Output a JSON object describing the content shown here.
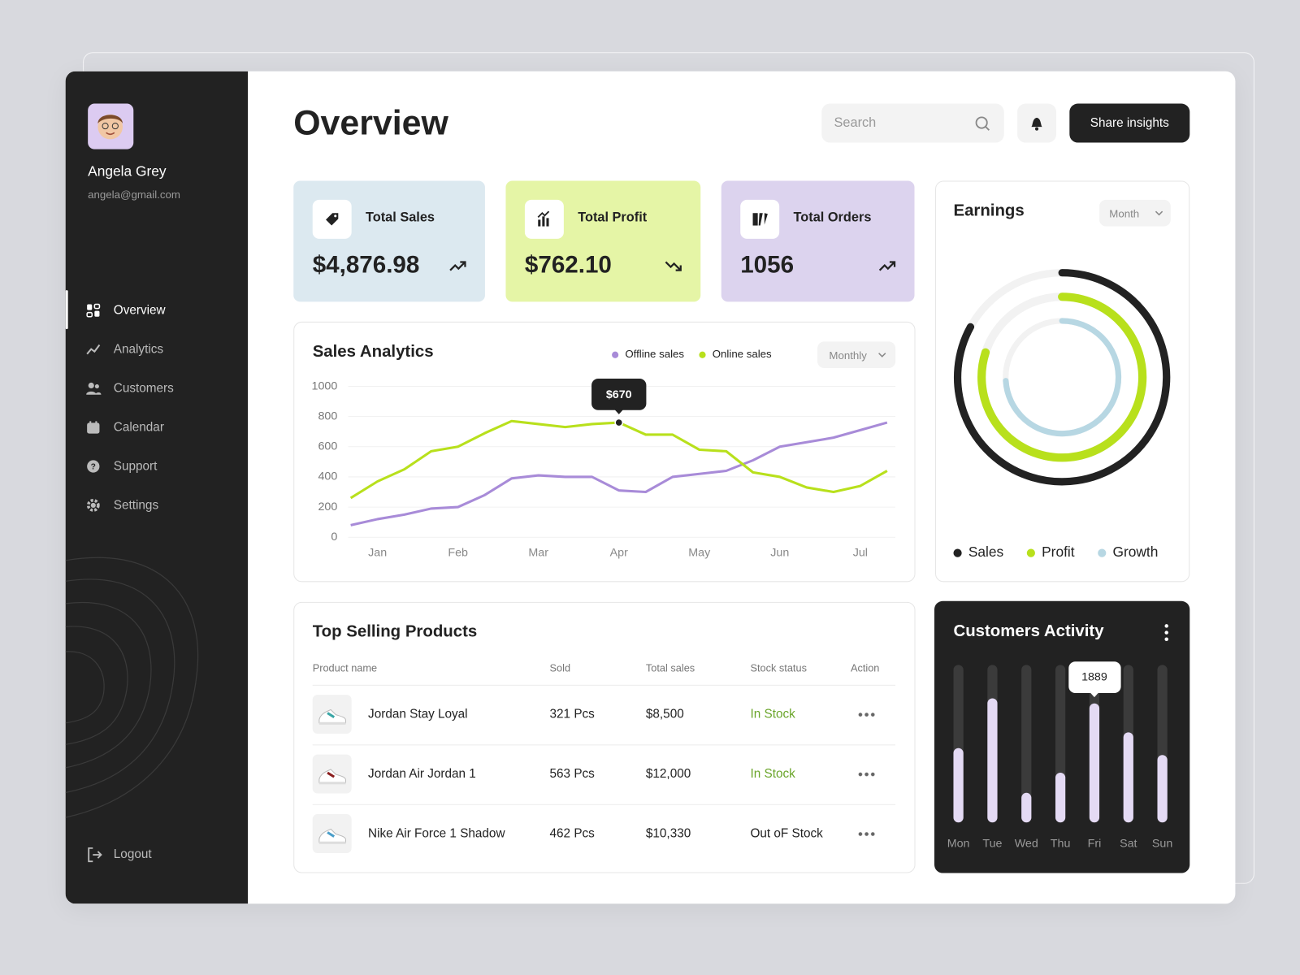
{
  "sidebar": {
    "user_name": "Angela Grey",
    "user_email": "angela@gmail.com",
    "nav": [
      "Overview",
      "Analytics",
      "Customers",
      "Calendar",
      "Support",
      "Settings"
    ],
    "logout": "Logout"
  },
  "header": {
    "title": "Overview",
    "search_placeholder": "Search",
    "share_button": "Share insights"
  },
  "stat_cards": [
    {
      "label": "Total Sales",
      "value": "$4,876.98",
      "trend": "up",
      "color": "#dce9f0"
    },
    {
      "label": "Total Profit",
      "value": "$762.10",
      "trend": "down",
      "color": "#e5f5a6"
    },
    {
      "label": "Total Orders",
      "value": "1056",
      "trend": "up",
      "color": "#dcd3ee"
    }
  ],
  "products": {
    "title": "Top Selling Products",
    "columns": [
      "Product name",
      "Sold",
      "Total sales",
      "Stock status",
      "Action"
    ],
    "rows": [
      {
        "name": "Jordan Stay Loyal",
        "sold": "321 Pcs",
        "total": "$8,500",
        "status": "In Stock",
        "in_stock": true
      },
      {
        "name": "Jordan Air Jordan 1",
        "sold": "563 Pcs",
        "total": "$12,000",
        "status": "In Stock",
        "in_stock": true
      },
      {
        "name": "Nike Air Force 1 Shadow",
        "sold": "462 Pcs",
        "total": "$10,330",
        "status": "Out oF Stock",
        "in_stock": false
      }
    ]
  },
  "chart_data": [
    {
      "type": "line",
      "title": "Sales Analytics",
      "period": "Monthly",
      "categories": [
        null,
        "Jan",
        null,
        null,
        "Feb",
        null,
        null,
        "Mar",
        null,
        null,
        "Apr",
        null,
        null,
        "May",
        null,
        null,
        "Jun",
        null,
        null,
        "Jul",
        null
      ],
      "series": [
        {
          "name": "Offline sales",
          "color": "#a88bd8",
          "values": [
            80,
            120,
            150,
            190,
            200,
            280,
            390,
            410,
            400,
            400,
            310,
            300,
            400,
            420,
            440,
            510,
            600,
            630,
            660,
            710,
            760
          ]
        },
        {
          "name": "Online sales",
          "color": "#b8e01c",
          "values": [
            260,
            370,
            450,
            570,
            600,
            690,
            770,
            750,
            730,
            750,
            760,
            680,
            680,
            580,
            570,
            430,
            400,
            330,
            300,
            340,
            440
          ]
        }
      ],
      "ylim": [
        0,
        1000
      ],
      "yticks": [
        0,
        200,
        400,
        600,
        800,
        1000
      ],
      "grid": true,
      "annotation": "$670"
    },
    {
      "type": "radial",
      "title": "Earnings",
      "period": "Month",
      "series": [
        {
          "name": "Sales",
          "color": "#222222",
          "value": 83
        },
        {
          "name": "Profit",
          "color": "#b8e01c",
          "value": 80
        },
        {
          "name": "Growth",
          "color": "#b7d7e3",
          "value": 74
        }
      ]
    },
    {
      "type": "bar",
      "title": "Customers Activity",
      "categories": [
        "Mon",
        "Tue",
        "Wed",
        "Thu",
        "Fri",
        "Sat",
        "Sun"
      ],
      "values": [
        1180,
        1970,
        470,
        790,
        1889,
        1430,
        1070
      ],
      "ylim": [
        0,
        2500
      ],
      "color": "#e4daf4"
    }
  ]
}
